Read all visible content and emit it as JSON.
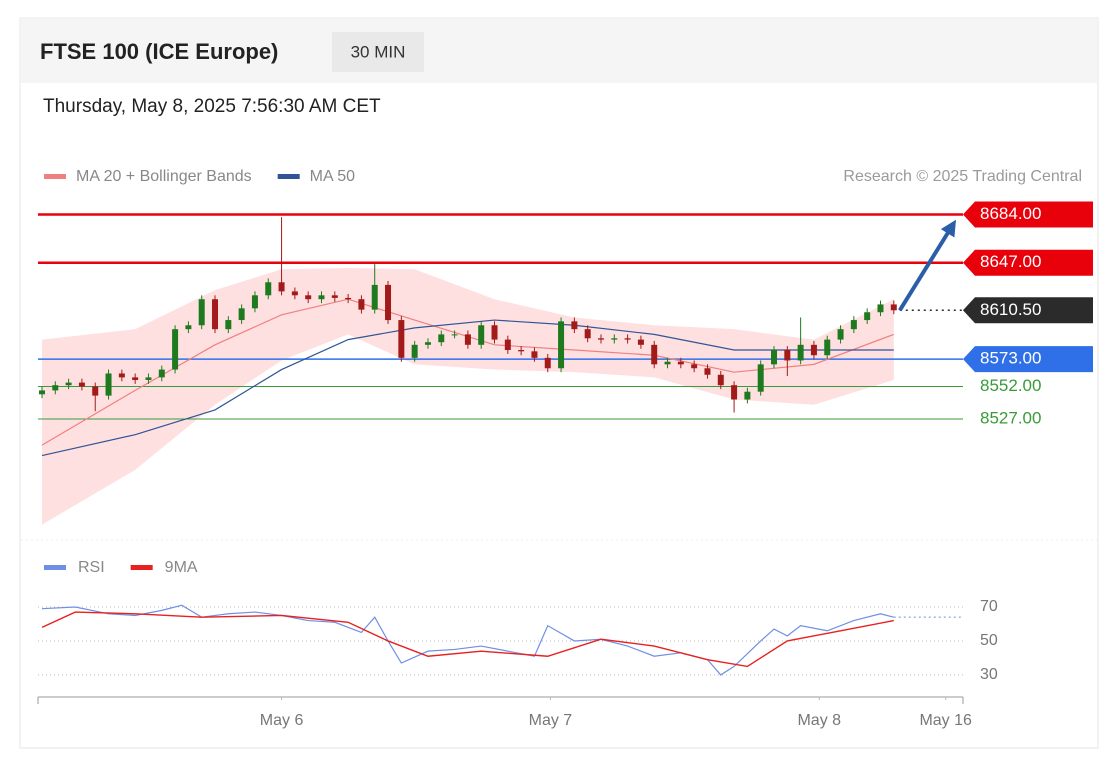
{
  "header": {
    "title": "FTSE 100 (ICE Europe)",
    "interval": "30 MIN",
    "timestamp": "Thursday, May 8, 2025 7:56:30 AM CET",
    "credit": "Research © 2025 Trading Central"
  },
  "chart_data": [
    {
      "type": "candlestick",
      "up_color": "#1f7a1f",
      "down_color": "#a31a1a",
      "xlim": [
        -0.3,
        69.2
      ],
      "xticks": [
        {
          "value": 18,
          "label": "May 6"
        },
        {
          "value": 38.2,
          "label": "May 7"
        },
        {
          "value": 58.4,
          "label": "May 8"
        },
        {
          "value": 67.9,
          "label": "May 16"
        }
      ],
      "ylim": [
        8438,
        8699
      ],
      "open": [
        8546,
        8549,
        8553,
        8555,
        8552,
        8545,
        8562,
        8559,
        8557,
        8559,
        8565,
        8596,
        8599,
        8619,
        8596,
        8603,
        8612,
        8622,
        8632,
        8625,
        8622,
        8619,
        8622,
        8620,
        8619,
        8611,
        8630,
        8603,
        8574,
        8584,
        8586,
        8592,
        8592,
        8584,
        8599,
        8588,
        8580,
        8579,
        8574,
        8566,
        8602,
        8596,
        8589,
        8588,
        8589,
        8588,
        8584,
        8569,
        8571,
        8569,
        8566,
        8561,
        8553,
        8542,
        8548,
        8569,
        8580,
        8572,
        8584,
        8576,
        8588,
        8596,
        8603,
        8609,
        8615
      ],
      "high": [
        8552,
        8556,
        8558,
        8558,
        8555,
        8565,
        8565,
        8562,
        8562,
        8568,
        8599,
        8602,
        8622,
        8622,
        8606,
        8615,
        8625,
        8635,
        8682,
        8628,
        8625,
        8625,
        8625,
        8623,
        8622,
        8646,
        8633,
        8606,
        8587,
        8589,
        8595,
        8595,
        8595,
        8602,
        8602,
        8591,
        8583,
        8582,
        8577,
        8605,
        8605,
        8599,
        8592,
        8592,
        8592,
        8591,
        8587,
        8574,
        8574,
        8572,
        8569,
        8564,
        8556,
        8551,
        8572,
        8583,
        8583,
        8605,
        8587,
        8591,
        8599,
        8606,
        8612,
        8618,
        8618
      ],
      "low": [
        8543,
        8546,
        8550,
        8549,
        8533,
        8542,
        8556,
        8554,
        8554,
        8556,
        8562,
        8593,
        8596,
        8593,
        8593,
        8600,
        8609,
        8619,
        8622,
        8619,
        8616,
        8616,
        8617,
        8616,
        8608,
        8608,
        8600,
        8571,
        8571,
        8581,
        8583,
        8589,
        8581,
        8581,
        8585,
        8577,
        8576,
        8571,
        8563,
        8563,
        8593,
        8586,
        8585,
        8585,
        8585,
        8581,
        8566,
        8566,
        8566,
        8563,
        8558,
        8550,
        8532,
        8539,
        8545,
        8566,
        8560,
        8569,
        8573,
        8573,
        8585,
        8593,
        8600,
        8606,
        8607.5
      ],
      "close": [
        8549,
        8553,
        8555,
        8552,
        8545,
        8562,
        8559,
        8557,
        8559,
        8565,
        8596,
        8599,
        8619,
        8596,
        8603,
        8612,
        8622,
        8632,
        8625,
        8622,
        8619,
        8622,
        8620,
        8619,
        8611,
        8630,
        8603,
        8574,
        8584,
        8586,
        8592,
        8592,
        8584,
        8599,
        8588,
        8580,
        8579,
        8574,
        8566,
        8602,
        8596,
        8589,
        8588,
        8589,
        8588,
        8584,
        8569,
        8571,
        8569,
        8566,
        8561,
        8553,
        8542,
        8548,
        8569,
        8580,
        8572,
        8584,
        8576,
        8588,
        8596,
        8603,
        8609,
        8615,
        8610.5
      ],
      "overlays": [
        {
          "name": "MA 20 + Bollinger Bands",
          "color": "#f08080",
          "band_color": "#ffd6d6",
          "x": [
            0,
            7,
            13,
            18,
            23,
            28,
            34,
            40,
            46,
            52,
            58,
            64
          ],
          "values": [
            8507,
            8549,
            8584,
            8607,
            8619,
            8603,
            8584,
            8580,
            8576,
            8563,
            8569,
            8592
          ],
          "upper": [
            8588,
            8596,
            8626,
            8642,
            8643,
            8642,
            8619,
            8605,
            8599,
            8596,
            8588,
            8619
          ],
          "lower": [
            8446,
            8488,
            8538,
            8572,
            8592,
            8569,
            8565,
            8563,
            8559,
            8542,
            8538,
            8557
          ]
        },
        {
          "name": "MA 50",
          "color": "#2f5597",
          "x": [
            0,
            7,
            13,
            18,
            23,
            28,
            34,
            40,
            46,
            52,
            58,
            64
          ],
          "values": [
            8499,
            8515,
            8534,
            8565,
            8588,
            8597,
            8603,
            8599,
            8592,
            8580,
            8580,
            8580
          ]
        }
      ],
      "levels": [
        {
          "value": 8684,
          "label": "8684.00",
          "color": "#e8000b",
          "line": "solid",
          "badge": true
        },
        {
          "value": 8647,
          "label": "8647.00",
          "color": "#e8000b",
          "line": "solid",
          "badge": true
        },
        {
          "value": 8610.5,
          "label": "8610.50",
          "color": "#2b2b2b",
          "line": "dotted",
          "badge": true
        },
        {
          "value": 8573,
          "label": "8573.00",
          "color": "#2f6fe8",
          "line": "solid",
          "badge": true
        },
        {
          "value": 8552,
          "label": "8552.00",
          "color": "#3a9a3a",
          "line": "thin",
          "badge": false
        },
        {
          "value": 8527,
          "label": "8527.00",
          "color": "#3a9a3a",
          "line": "thin",
          "badge": false
        }
      ],
      "arrow_color": "#2a5ea8"
    },
    {
      "type": "line",
      "ylim": [
        17,
        80
      ],
      "yticks": [
        30,
        50,
        70
      ],
      "series": [
        {
          "name": "RSI",
          "color": "#6f8fe6",
          "x": [
            0,
            2.5,
            5,
            7,
            9,
            10.5,
            12,
            14,
            16,
            18,
            20,
            22,
            24,
            25,
            26,
            27,
            29,
            31,
            33,
            35,
            37,
            38,
            40,
            42,
            44,
            46,
            48,
            50,
            51,
            52,
            54,
            55,
            56,
            57,
            59,
            61,
            63,
            64
          ],
          "values": [
            69,
            70,
            66,
            65,
            68,
            71,
            64,
            66,
            67,
            65,
            62,
            61,
            55,
            64,
            50,
            37,
            44,
            45,
            47,
            44,
            41,
            59,
            50,
            51,
            47,
            41,
            43,
            39,
            30,
            35,
            50,
            57,
            53,
            59,
            56,
            62,
            66,
            64
          ]
        },
        {
          "name": "9MA",
          "color": "#e8201e",
          "x": [
            0,
            2.5,
            7,
            12,
            18,
            23,
            26,
            29,
            33,
            38,
            42,
            46,
            50,
            53,
            56,
            60,
            64
          ],
          "values": [
            58,
            67,
            66,
            64,
            65,
            61,
            50,
            41,
            44,
            41,
            51,
            47,
            39,
            35,
            50,
            56,
            62
          ]
        }
      ]
    }
  ]
}
